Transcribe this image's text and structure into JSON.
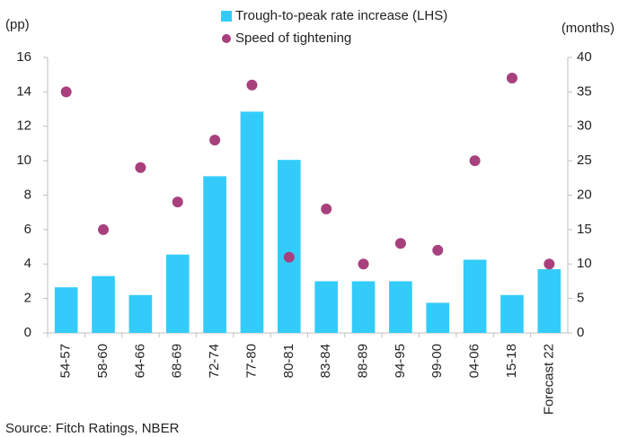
{
  "chart_data": {
    "type": "combo",
    "y_label": "(pp)",
    "y2_label": "(months)",
    "source": "Source: Fitch Ratings, NBER",
    "categories": [
      "54-57",
      "58-60",
      "64-66",
      "68-69",
      "72-74",
      "77-80",
      "80-81",
      "83-84",
      "88-89",
      "94-95",
      "99-00",
      "04-06",
      "15-18",
      "Forecast 22"
    ],
    "series": [
      {
        "name": "Trough-to-peak rate increase (LHS)",
        "type": "bar",
        "color": "#33ccfa",
        "axis": "y",
        "values": [
          2.65,
          3.3,
          2.2,
          4.55,
          9.1,
          12.85,
          10.05,
          3.0,
          3.0,
          3.0,
          1.75,
          4.25,
          2.2,
          3.7
        ]
      },
      {
        "name": "Speed of tightening",
        "type": "scatter",
        "color": "#a8407e",
        "axis": "y2",
        "values": [
          35,
          15,
          24,
          19,
          28,
          36,
          11,
          18,
          10,
          13,
          12,
          25,
          37,
          10
        ]
      }
    ],
    "ylim": [
      0,
      16
    ],
    "yticks": [
      0,
      2,
      4,
      6,
      8,
      10,
      12,
      14,
      16
    ],
    "y2lim": [
      0,
      40
    ],
    "y2ticks": [
      0,
      5,
      10,
      15,
      20,
      25,
      30,
      35,
      40
    ],
    "grid": false
  }
}
